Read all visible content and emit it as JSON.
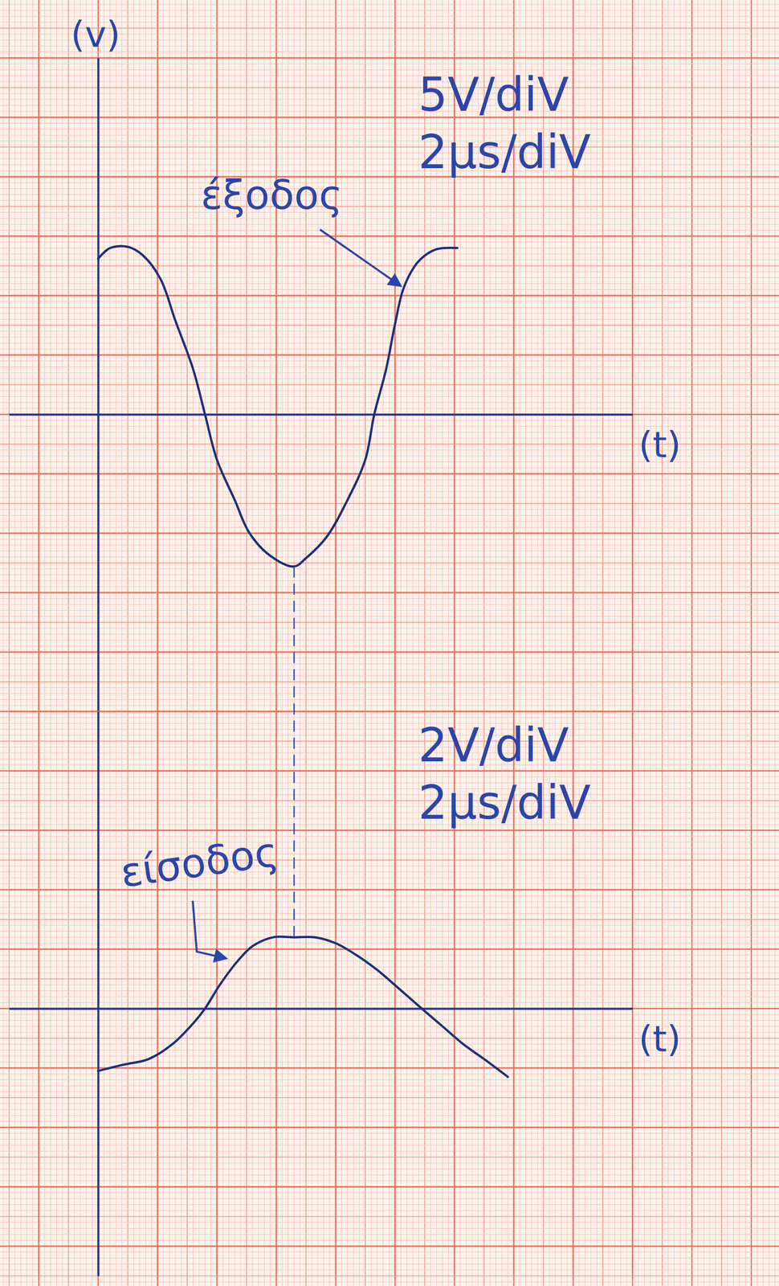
{
  "chart_data": [
    {
      "type": "line",
      "x_label": "(t)",
      "y_label": "(v)",
      "annotations": [
        "5V/diV",
        "2μs/diV"
      ],
      "x": [
        0,
        0.4,
        1,
        1.5,
        2.1,
        2.6,
        3.2,
        3.6,
        4,
        4.6,
        5.1,
        5.8,
        6.6,
        7,
        7.7,
        8.4,
        9,
        9.3,
        9.7,
        10,
        10.3,
        10.8,
        11.4,
        12.1
      ],
      "series": [
        {
          "name": "έξοδος",
          "color": "#1f2f78",
          "values": [
            13.1,
            14,
            14.1,
            13.4,
            11.4,
            7.9,
            3.8,
            0,
            -3.8,
            -7.2,
            -10,
            -11.9,
            -12.8,
            -12.1,
            -10.3,
            -7.2,
            -3.8,
            0,
            3.8,
            7.6,
            10.7,
            12.9,
            13.9,
            14
          ]
        }
      ],
      "xlim": [
        -3,
        18
      ],
      "xticks": [
        -2,
        0,
        2,
        4,
        6,
        8,
        10,
        12,
        14,
        16,
        18
      ],
      "ylim": [
        -25,
        30
      ],
      "yticks": [
        -25,
        -20,
        -15,
        -10,
        -5,
        0,
        5,
        10,
        15,
        20,
        25,
        30
      ],
      "grid": true,
      "tick_labels": false
    },
    {
      "type": "line",
      "x_label": "(t)",
      "annotations": [
        "2V/diV",
        "2μs/diV"
      ],
      "x": [
        0,
        0.8,
        1.7,
        2.5,
        3.2,
        3.6,
        4.1,
        4.7,
        5.2,
        5.9,
        6.6,
        7.3,
        8,
        8.7,
        9.4,
        10.1,
        10.9,
        11.6,
        12.3,
        13,
        13.8
      ],
      "series": [
        {
          "name": "είσοδος",
          "color": "#1f2f78",
          "values": [
            -2.1,
            -1.9,
            -1.7,
            -1.2,
            -0.5,
            0,
            0.8,
            1.6,
            2.1,
            2.4,
            2.4,
            2.4,
            2.2,
            1.8,
            1.3,
            0.7,
            0,
            -0.6,
            -1.2,
            -1.7,
            -2.3
          ]
        }
      ],
      "xlim": [
        -3,
        18
      ],
      "xticks": [
        -2,
        0,
        2,
        4,
        6,
        8,
        10,
        12,
        14,
        16,
        18
      ],
      "ylim": [
        -9,
        10
      ],
      "yticks": [
        -8,
        -6,
        -4,
        -2,
        0,
        2,
        4,
        6,
        8,
        10
      ],
      "grid": true,
      "tick_labels": false
    }
  ]
}
